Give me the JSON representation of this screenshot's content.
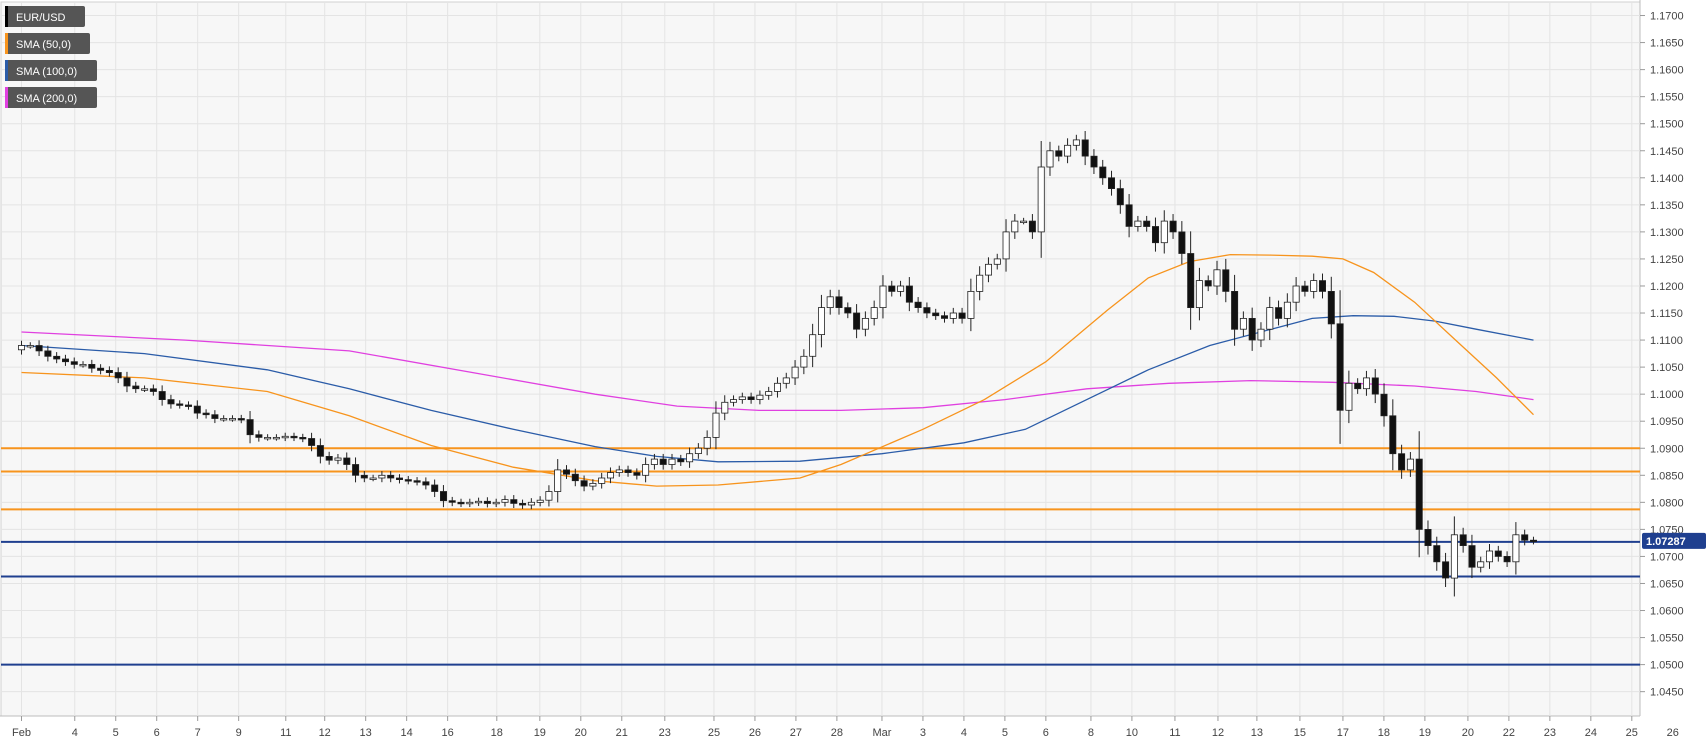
{
  "chart_data": {
    "type": "candlestick",
    "legend": [
      {
        "label": "EUR/USD",
        "color": "#000000"
      },
      {
        "label": "SMA (50,0)",
        "color": "#f7941d"
      },
      {
        "label": "SMA (100,0)",
        "color": "#2b5ca8"
      },
      {
        "label": "SMA (200,0)",
        "color": "#e040e0"
      }
    ],
    "last_price": {
      "label": "1.07287",
      "value": 1.07287
    },
    "ylim": [
      1.0405,
      1.1725
    ],
    "xlim": [
      -1,
      79
    ],
    "y_ticks": [
      1.17,
      1.165,
      1.16,
      1.155,
      1.15,
      1.145,
      1.14,
      1.135,
      1.13,
      1.125,
      1.12,
      1.115,
      1.11,
      1.105,
      1.1,
      1.095,
      1.09,
      1.085,
      1.08,
      1.075,
      1.07,
      1.065,
      1.06,
      1.055,
      1.05,
      1.045
    ],
    "y_tick_labels": [
      "1.1700",
      "1.1650",
      "1.1600",
      "1.1550",
      "1.1500",
      "1.1450",
      "1.1400",
      "1.1350",
      "1.1300",
      "1.1250",
      "1.1200",
      "1.1150",
      "1.1100",
      "1.1050",
      "1.1000",
      "1.0950",
      "1.0900",
      "1.0850",
      "1.0800",
      "1.0750",
      "1.0700",
      "1.0650",
      "1.0600",
      "1.0550",
      "1.0500",
      "1.0450"
    ],
    "x_ticks": [
      {
        "label": "Feb",
        "x": 0
      },
      {
        "label": "4",
        "x": 2.6
      },
      {
        "label": "5",
        "x": 4.6
      },
      {
        "label": "6",
        "x": 6.6
      },
      {
        "label": "7",
        "x": 8.6
      },
      {
        "label": "9",
        "x": 10.6
      },
      {
        "label": "11",
        "x": 12.9
      },
      {
        "label": "12",
        "x": 14.8
      },
      {
        "label": "13",
        "x": 16.8
      },
      {
        "label": "14",
        "x": 18.8
      },
      {
        "label": "16",
        "x": 20.8
      },
      {
        "label": "18",
        "x": 23.2
      },
      {
        "label": "19",
        "x": 25.3
      },
      {
        "label": "20",
        "x": 27.3
      },
      {
        "label": "21",
        "x": 29.3
      },
      {
        "label": "23",
        "x": 31.4
      },
      {
        "label": "25",
        "x": 33.8
      },
      {
        "label": "26",
        "x": 35.8
      },
      {
        "label": "27",
        "x": 37.8
      },
      {
        "label": "28",
        "x": 39.8
      },
      {
        "label": "Mar",
        "x": 42.0
      },
      {
        "label": "3",
        "x": 44.0
      },
      {
        "label": "4",
        "x": 46.0
      },
      {
        "label": "5",
        "x": 48.0
      },
      {
        "label": "6",
        "x": 50.0
      },
      {
        "label": "8",
        "x": 52.2
      },
      {
        "label": "10",
        "x": 54.2
      },
      {
        "label": "11",
        "x": 56.3
      },
      {
        "label": "12",
        "x": 58.4
      },
      {
        "label": "13",
        "x": 60.3
      },
      {
        "label": "15",
        "x": 62.4
      },
      {
        "label": "17",
        "x": 64.5
      },
      {
        "label": "18",
        "x": 66.5
      },
      {
        "label": "19",
        "x": 68.5
      },
      {
        "label": "20",
        "x": 70.6
      },
      {
        "label": "22",
        "x": 72.6
      },
      {
        "label": "23",
        "x": 74.6
      },
      {
        "label": "24",
        "x": 76.6
      },
      {
        "label": "25",
        "x": 78.6
      },
      {
        "label": "26",
        "x": 80.6
      }
    ],
    "grid": true,
    "horizontal_levels": [
      {
        "value": 1.09,
        "color": "#f7941d"
      },
      {
        "value": 1.0857,
        "color": "#f7941d"
      },
      {
        "value": 1.0787,
        "color": "#f7941d"
      },
      {
        "value": 1.0727,
        "color": "#1f3f8f"
      },
      {
        "value": 1.0663,
        "color": "#1f3f8f"
      },
      {
        "value": 1.05,
        "color": "#1f3f8f"
      }
    ],
    "closes": [
      1.109,
      1.109,
      1.108,
      1.107,
      1.1065,
      1.106,
      1.1055,
      1.1055,
      1.1048,
      1.1044,
      1.104,
      1.103,
      1.1015,
      1.101,
      1.101,
      1.1005,
      1.099,
      1.0982,
      1.098,
      1.0978,
      1.0965,
      1.0962,
      1.0955,
      1.0955,
      1.0955,
      1.0953,
      1.0925,
      1.092,
      1.092,
      1.092,
      1.0922,
      1.092,
      1.0918,
      1.0905,
      1.0885,
      1.0878,
      1.0882,
      1.087,
      1.085,
      1.0845,
      1.0845,
      1.085,
      1.0845,
      1.0842,
      1.084,
      1.0838,
      1.0832,
      1.082,
      1.0803,
      1.08,
      1.0798,
      1.08,
      1.0802,
      1.0798,
      1.08,
      1.0805,
      1.0798,
      1.0795,
      1.08,
      1.0804,
      1.082,
      1.086,
      1.0852,
      1.084,
      1.083,
      1.0835,
      1.0845,
      1.0855,
      1.086,
      1.0855,
      1.085,
      1.087,
      1.088,
      1.087,
      1.088,
      1.0875,
      1.089,
      1.09,
      1.092,
      1.0965,
      1.0985,
      1.099,
      1.0995,
      1.099,
      1.0998,
      1.1005,
      1.102,
      1.103,
      1.105,
      1.107,
      1.111,
      1.116,
      1.118,
      1.116,
      1.115,
      1.112,
      1.114,
      1.116,
      1.12,
      1.119,
      1.12,
      1.117,
      1.116,
      1.115,
      1.1145,
      1.114,
      1.115,
      1.114,
      1.119,
      1.122,
      1.124,
      1.125,
      1.13,
      1.132,
      1.132,
      1.13,
      1.142,
      1.145,
      1.144,
      1.146,
      1.147,
      1.144,
      1.142,
      1.14,
      1.138,
      1.135,
      1.131,
      1.132,
      1.131,
      1.128,
      1.132,
      1.13,
      1.126,
      1.116,
      1.121,
      1.12,
      1.123,
      1.119,
      1.112,
      1.114,
      1.11,
      1.112,
      1.116,
      1.114,
      1.117,
      1.12,
      1.119,
      1.121,
      1.119,
      1.113,
      1.097,
      1.102,
      1.101,
      1.103,
      1.1,
      1.096,
      1.089,
      1.086,
      1.088,
      1.075,
      1.072,
      1.069,
      1.066,
      1.074,
      1.072,
      1.068,
      1.069,
      1.071,
      1.07,
      1.069,
      1.074,
      1.073,
      1.07287
    ],
    "sma50": [
      [
        0,
        1.104
      ],
      [
        6,
        1.103
      ],
      [
        12,
        1.1005
      ],
      [
        16,
        1.096
      ],
      [
        20,
        1.0905
      ],
      [
        24,
        1.0865
      ],
      [
        28,
        1.084
      ],
      [
        31,
        1.083
      ],
      [
        34,
        1.0832
      ],
      [
        38,
        1.0845
      ],
      [
        40,
        1.087
      ],
      [
        44,
        1.0935
      ],
      [
        47,
        1.099
      ],
      [
        50,
        1.106
      ],
      [
        53,
        1.1155
      ],
      [
        55,
        1.1215
      ],
      [
        57,
        1.1245
      ],
      [
        59,
        1.1258
      ],
      [
        61,
        1.1257
      ],
      [
        63,
        1.1255
      ],
      [
        64.5,
        1.125
      ],
      [
        66,
        1.1225
      ],
      [
        68,
        1.117
      ],
      [
        70,
        1.11
      ],
      [
        72,
        1.103
      ],
      [
        73.8,
        1.0962
      ]
    ],
    "sma100": [
      [
        0,
        1.109
      ],
      [
        6,
        1.1075
      ],
      [
        12,
        1.1045
      ],
      [
        16,
        1.101
      ],
      [
        20,
        1.097
      ],
      [
        24,
        1.0935
      ],
      [
        28,
        1.0903
      ],
      [
        31,
        1.0885
      ],
      [
        34,
        1.0875
      ],
      [
        38,
        1.0876
      ],
      [
        42,
        1.089
      ],
      [
        46,
        1.091
      ],
      [
        49,
        1.0935
      ],
      [
        52,
        1.099
      ],
      [
        55,
        1.1045
      ],
      [
        58,
        1.109
      ],
      [
        61,
        1.112
      ],
      [
        63,
        1.114
      ],
      [
        65,
        1.1145
      ],
      [
        67,
        1.1144
      ],
      [
        69,
        1.1135
      ],
      [
        71,
        1.112
      ],
      [
        73.8,
        1.11
      ]
    ],
    "sma200": [
      [
        0,
        1.1115
      ],
      [
        8,
        1.11
      ],
      [
        16,
        1.108
      ],
      [
        22,
        1.104
      ],
      [
        28,
        1.1
      ],
      [
        32,
        1.0978
      ],
      [
        36,
        1.097
      ],
      [
        40,
        1.097
      ],
      [
        44,
        1.0975
      ],
      [
        48,
        1.099
      ],
      [
        52,
        1.101
      ],
      [
        56,
        1.102
      ],
      [
        60,
        1.1025
      ],
      [
        64,
        1.1022
      ],
      [
        68,
        1.1015
      ],
      [
        71,
        1.1005
      ],
      [
        73.8,
        1.099
      ]
    ]
  }
}
